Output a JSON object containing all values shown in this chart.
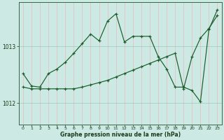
{
  "xlabel": "Graphe pression niveau de la mer (hPa)",
  "background_color": "#cce9e4",
  "vgrid_color": "#e8bbbb",
  "hgrid_color": "#99ccbb",
  "line_color": "#1a5c2a",
  "yticks": [
    1012,
    1013
  ],
  "ylim": [
    1011.62,
    1013.78
  ],
  "xlim": [
    -0.5,
    23.5
  ],
  "xticks": [
    0,
    1,
    2,
    3,
    4,
    5,
    6,
    7,
    8,
    9,
    10,
    11,
    12,
    13,
    14,
    15,
    16,
    17,
    18,
    19,
    20,
    21,
    22,
    23
  ],
  "detailed_line": [
    1012.52,
    1012.3,
    1012.28,
    1012.52,
    1012.6,
    1012.72,
    1012.88,
    1013.05,
    1013.22,
    1013.1,
    1013.45,
    1013.58,
    1013.08,
    1013.18,
    1013.18,
    1013.18,
    1012.82,
    1012.6,
    1012.28,
    1012.28,
    1012.22,
    1012.02,
    1013.3,
    1013.65
  ],
  "smooth_line": [
    1012.28,
    1012.25,
    1012.25,
    1012.25,
    1012.25,
    1012.25,
    1012.25,
    1012.28,
    1012.32,
    1012.36,
    1012.4,
    1012.46,
    1012.52,
    1012.58,
    1012.64,
    1012.7,
    1012.76,
    1012.82,
    1012.88,
    1012.25,
    1012.82,
    1013.15,
    1013.32,
    1013.55
  ]
}
